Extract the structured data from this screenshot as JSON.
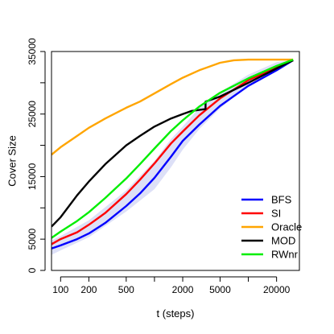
{
  "chart_data": {
    "type": "line",
    "title": "",
    "xlabel": "t (steps)",
    "ylabel": "Cover Size",
    "x_scale": "log",
    "xlim": [
      80,
      35000
    ],
    "ylim": [
      0,
      35000
    ],
    "x_ticks": [
      100,
      200,
      500,
      1000,
      2000,
      5000,
      10000,
      20000
    ],
    "x_tick_labels": [
      "100",
      "200",
      "500",
      "",
      "2000",
      "5000",
      "",
      "20000"
    ],
    "y_ticks": [
      0,
      5000,
      15000,
      25000,
      35000
    ],
    "y_tick_labels": [
      "0",
      "5000",
      "15000",
      "25000",
      "35000"
    ],
    "y_minor_ticks": [
      10000,
      20000,
      30000
    ],
    "grid": false,
    "legend_position": "bottom-right",
    "bands": [
      {
        "series": "BFS",
        "color": "#dde0f7",
        "x": [
          80,
          100,
          200,
          500,
          1000,
          1500,
          2000,
          3000,
          5000,
          10000,
          20000,
          30000
        ],
        "upper": [
          4800,
          5500,
          8000,
          12800,
          17500,
          21000,
          23000,
          26000,
          28500,
          31300,
          33300,
          33700
        ],
        "lower": [
          2500,
          3200,
          5300,
          9400,
          13000,
          16500,
          19300,
          22600,
          25900,
          29600,
          32200,
          33500
        ]
      }
    ],
    "series": [
      {
        "name": "BFS",
        "color": "#0000ff",
        "x": [
          80,
          100,
          150,
          200,
          300,
          500,
          700,
          1000,
          1500,
          2000,
          3000,
          5000,
          10000,
          20000,
          30000
        ],
        "y": [
          3500,
          4000,
          5000,
          5900,
          7600,
          10300,
          12300,
          14800,
          18200,
          20700,
          23300,
          26300,
          29500,
          32000,
          33600
        ]
      },
      {
        "name": "SI",
        "color": "#ff0000",
        "x": [
          80,
          100,
          150,
          200,
          300,
          500,
          700,
          1000,
          1500,
          2000,
          3000,
          5000,
          10000,
          20000,
          30000
        ],
        "y": [
          4200,
          5000,
          6100,
          7300,
          9200,
          12200,
          14500,
          17100,
          20300,
          22200,
          24800,
          27500,
          30400,
          32500,
          33600
        ]
      },
      {
        "name": "Oracle",
        "color": "#ffa500",
        "x": [
          80,
          100,
          150,
          200,
          300,
          500,
          700,
          1000,
          1500,
          2000,
          3000,
          5000,
          7000,
          10000,
          20000,
          30000
        ],
        "y": [
          18500,
          19700,
          21500,
          22800,
          24300,
          26000,
          27000,
          28300,
          29800,
          30800,
          32000,
          33200,
          33600,
          33700,
          33700,
          33700
        ]
      },
      {
        "name": "MOD",
        "color": "#000000",
        "x": [
          80,
          100,
          150,
          200,
          300,
          500,
          700,
          1000,
          1500,
          2000,
          2500,
          3500,
          3500,
          5000,
          10000,
          20000,
          30000
        ],
        "y": [
          7000,
          8500,
          12000,
          14200,
          17000,
          20000,
          21500,
          23000,
          24300,
          25000,
          25500,
          25800,
          27000,
          27800,
          30000,
          32300,
          33600
        ]
      },
      {
        "name": "RWnr",
        "color": "#00ee00",
        "x": [
          80,
          100,
          150,
          200,
          300,
          500,
          700,
          1000,
          1500,
          2000,
          3000,
          5000,
          10000,
          20000,
          30000
        ],
        "y": [
          5200,
          6200,
          7900,
          9300,
          11600,
          14700,
          17000,
          19500,
          22300,
          24000,
          26200,
          28400,
          30700,
          32700,
          33700
        ]
      }
    ]
  }
}
